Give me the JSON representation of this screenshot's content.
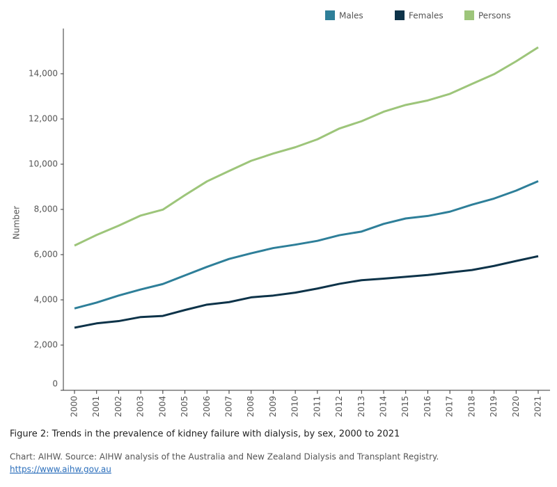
{
  "chart_data": {
    "type": "line",
    "y_label": "Number",
    "caption": "Figure 2: Trends in the prevalence of kidney failure with dialysis, by sex, 2000 to 2021",
    "source": "Chart: AIHW. Source: AIHW analysis of the Australia and New Zealand Dialysis and Transplant Registry.",
    "link": "https://www.aihw.gov.au",
    "categories": [
      "2000",
      "2001",
      "2002",
      "2003",
      "2004",
      "2005",
      "2006",
      "2007",
      "2008",
      "2009",
      "2010",
      "2011",
      "2012",
      "2013",
      "2014",
      "2015",
      "2016",
      "2017",
      "2018",
      "2019",
      "2020",
      "2021"
    ],
    "series": [
      {
        "name": "Males",
        "color": "#2e7f99",
        "values": [
          3620,
          3880,
          4190,
          4460,
          4700,
          5080,
          5460,
          5810,
          6060,
          6290,
          6440,
          6610,
          6860,
          7020,
          7360,
          7600,
          7710,
          7900,
          8210,
          8480,
          8830,
          9250
        ]
      },
      {
        "name": "Females",
        "color": "#0d3349",
        "values": [
          2770,
          2960,
          3060,
          3240,
          3290,
          3550,
          3790,
          3900,
          4110,
          4190,
          4320,
          4500,
          4710,
          4870,
          4940,
          5020,
          5100,
          5210,
          5320,
          5500,
          5720,
          5930
        ]
      },
      {
        "name": "Persons",
        "color": "#9dc57a",
        "values": [
          6400,
          6870,
          7280,
          7730,
          7990,
          8630,
          9240,
          9700,
          10150,
          10470,
          10750,
          11100,
          11580,
          11900,
          12320,
          12620,
          12820,
          13110,
          13550,
          13980,
          14550,
          15170
        ]
      }
    ],
    "ylim": [
      0,
      16000
    ],
    "yticks": [
      0,
      {
        "value": 2000,
        "label": "2,000"
      },
      {
        "value": 4000,
        "label": "4,000"
      },
      {
        "value": 6000,
        "label": "6,000"
      },
      {
        "value": 8000,
        "label": "8,000"
      },
      {
        "value": 10000,
        "label": "10,000"
      },
      {
        "value": 12000,
        "label": "12,000"
      },
      {
        "value": 14000,
        "label": "14,000"
      }
    ],
    "legend": "top-right"
  }
}
